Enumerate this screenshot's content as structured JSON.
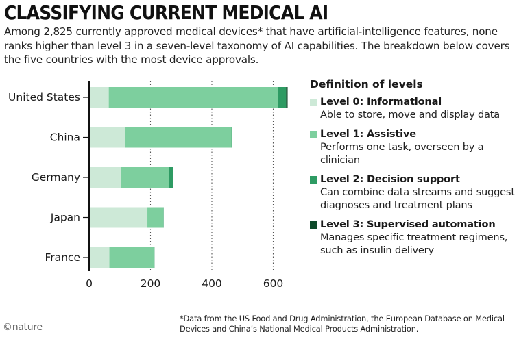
{
  "header": {
    "title": "CLASSIFYING CURRENT MEDICAL AI",
    "subtitle": "Among 2,825 currently approved medical devices* that have artificial-intelligence features, none ranks higher than level 3 in a seven-level taxonomy of AI capabilities. The breakdown below covers the five countries with the most device approvals."
  },
  "colors": {
    "level0": "#cde9d7",
    "level1": "#7dcf9e",
    "level2": "#2e9b63",
    "level3": "#0d4a2a",
    "axis": "#111111",
    "grid": "#555555"
  },
  "chart_data": {
    "type": "bar",
    "orientation": "horizontal",
    "stacked": true,
    "categories": [
      "United States",
      "China",
      "Germany",
      "Japan",
      "France"
    ],
    "series": [
      {
        "name": "Level 0: Informational",
        "values": [
          64,
          118,
          104,
          190,
          66
        ]
      },
      {
        "name": "Level 1: Assistive",
        "values": [
          551,
          346,
          157,
          52,
          145
        ]
      },
      {
        "name": "Level 2: Decision support",
        "values": [
          27,
          3,
          13,
          1,
          2
        ]
      },
      {
        "name": "Level 3: Supervised automation",
        "values": [
          5,
          0,
          0,
          0,
          0
        ]
      }
    ],
    "xticks": [
      "0",
      "200",
      "400",
      "600"
    ],
    "xlim": [
      0,
      660
    ],
    "grid": "dotted vertical lines at 200, 400 and 600",
    "legend": "right"
  },
  "legend": {
    "title": "Definition of levels",
    "items": [
      {
        "name": "Level 0: Informational",
        "desc": "Able to store, move and display data"
      },
      {
        "name": "Level 1: Assistive",
        "desc": "Performs one task, overseen by a clinician"
      },
      {
        "name": "Level 2: Decision support",
        "desc": "Can combine data streams and suggest diagnoses and treatment plans"
      },
      {
        "name": "Level 3: Supervised automation",
        "desc": "Manages specific treatment regimens, such as insulin delivery"
      }
    ]
  },
  "footnote": "*Data from the US Food and Drug Administration, the European Database on Medical Devices and China’s National Medical Products Administration.",
  "logo": "©nature"
}
